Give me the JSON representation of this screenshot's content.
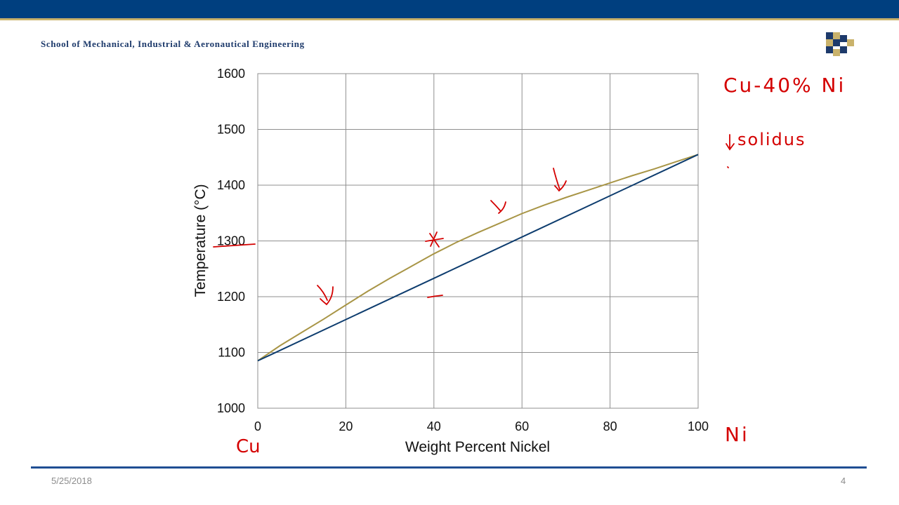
{
  "header": {
    "school": "School of Mechanical, Industrial & Aeronautical Engineering"
  },
  "footer": {
    "date": "5/25/2018",
    "page": "4"
  },
  "annotations": {
    "alloy": "Cu-40% Ni",
    "solidus": "solidus",
    "left_element": "Cu",
    "right_element": "Ni"
  },
  "colors": {
    "header_bar": "#003f7f",
    "header_stripe": "#c9b26b",
    "liquidus": "#a89546",
    "solidus": "#0d3c6e",
    "annotation": "#d40000",
    "grid": "#8f8f8f"
  },
  "chart_data": {
    "type": "line",
    "xlabel": "Weight Percent Nickel",
    "ylabel": "Temperature (°C)",
    "xlim": [
      0,
      100
    ],
    "ylim": [
      1000,
      1600
    ],
    "xticks": [
      0,
      20,
      40,
      60,
      80,
      100
    ],
    "yticks": [
      1000,
      1100,
      1200,
      1300,
      1400,
      1500,
      1600
    ],
    "grid": true,
    "series": [
      {
        "color": "#a89546",
        "x": [
          0,
          5,
          10,
          15,
          20,
          25,
          30,
          35,
          40,
          45,
          50,
          55,
          60,
          65,
          70,
          75,
          80,
          85,
          90,
          95,
          100
        ],
        "y": [
          1085,
          1112,
          1136,
          1160,
          1185,
          1210,
          1233,
          1255,
          1277,
          1297,
          1315,
          1332,
          1349,
          1364,
          1378,
          1391,
          1404,
          1417,
          1429,
          1442,
          1455
        ]
      },
      {
        "color": "#0d3c6e",
        "x": [
          0,
          100
        ],
        "y": [
          1085,
          1455
        ]
      }
    ]
  }
}
